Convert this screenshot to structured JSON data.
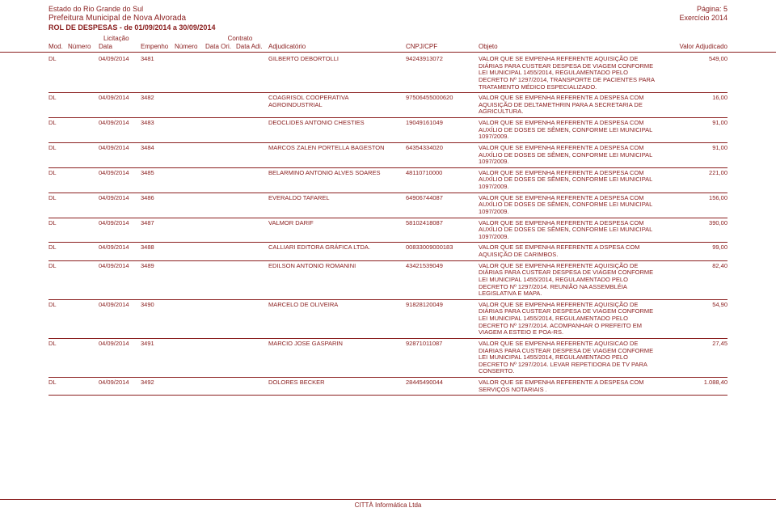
{
  "color": "#8b2020",
  "background_color": "#ffffff",
  "header": {
    "estado": "Estado do Rio Grande do Sul",
    "prefeitura": "Prefeitura Municipal de Nova Alvorada",
    "rol": "ROL DE DESPESAS - de 01/09/2014 a 30/09/2014",
    "pagina": "Página: 5",
    "exercicio": "Exercício 2014"
  },
  "sublabels": {
    "licitacao": "Licitação",
    "contrato": "Contrato"
  },
  "columns": {
    "mod": "Mod.",
    "numero1": "Número",
    "data1": "Data",
    "empenho": "Empenho",
    "numero2": "Número",
    "dataori": "Data Ori.",
    "dataadi": "Data Adi.",
    "adj": "Adjudicatório",
    "cnpj": "CNPJ/CPF",
    "objeto": "Objeto",
    "valor": "Valor Adjudicado"
  },
  "rows": [
    {
      "mod": "DL",
      "data": "04/09/2014",
      "empenho": "3481",
      "adj": "GILBERTO DEBORTOLLI",
      "cnpj": "94243913072",
      "obj": "VALOR QUE SE EMPENHA REFERENTE AQUISIÇÃO DE DIÁRIAS PARA CUSTEAR DESPESA DE VIAGEM CONFORME LEI MUNICIPAL 1455/2014, REGULAMENTADO PELO DECRETO Nº 1297/2014, TRANSPORTE DE PACIENTES PARA TRATAMENTO MÉDICO ESPECIALIZADO.",
      "val": "549,00"
    },
    {
      "mod": "DL",
      "data": "04/09/2014",
      "empenho": "3482",
      "adj": "COAGRISOL COOPERATIVA AGROINDUSTRIAL",
      "cnpj": "97506455000620",
      "obj": "VALOR QUE SE EMPENHA REFERENTE A DESPESA COM AQUISIÇÃO DE DELTAMETHRIN PARA A SECRETARIA DE AGRICULTURA.",
      "val": "16,00"
    },
    {
      "mod": "DL",
      "data": "04/09/2014",
      "empenho": "3483",
      "adj": "DEOCLIDES ANTONIO CHESTIES",
      "cnpj": "19049161049",
      "obj": "VALOR QUE SE EMPENHA REFERENTE A DESPESA COM AUXÍLIO DE DOSES DE SÊMEN, CONFORME LEI MUNICIPAL 1097/2009.",
      "val": "91,00"
    },
    {
      "mod": "DL",
      "data": "04/09/2014",
      "empenho": "3484",
      "adj": "MARCOS ZALEN PORTELLA BAGESTON",
      "cnpj": "64354334020",
      "obj": "VALOR QUE SE EMPENHA REFERENTE A DESPESA COM AUXÍLIO DE DOSES DE SÊMEN, CONFORME LEI MUNICIPAL 1097/2009.",
      "val": "91,00"
    },
    {
      "mod": "DL",
      "data": "04/09/2014",
      "empenho": "3485",
      "adj": "BELARMINO ANTONIO ALVES SOARES",
      "cnpj": "48110710000",
      "obj": "VALOR QUE SE EMPENHA REFERENTE A DESPESA COM AUXÍLIO DE DOSES DE SÊMEN, CONFORME LEI MUNICIPAL 1097/2009.",
      "val": "221,00"
    },
    {
      "mod": "DL",
      "data": "04/09/2014",
      "empenho": "3486",
      "adj": "EVERALDO TAFAREL",
      "cnpj": "64906744087",
      "obj": "VALOR QUE SE EMPENHA REFERENTE A DESPESA COM AUXÍLIO DE DOSES DE SÊMEN, CONFORME LEI MUNICIPAL 1097/2009.",
      "val": "156,00"
    },
    {
      "mod": "DL",
      "data": "04/09/2014",
      "empenho": "3487",
      "adj": "VALMOR DARIF",
      "cnpj": "58102418087",
      "obj": "VALOR QUE SE EMPENHA REFERENTE A DESPESA COM AUXÍLIO DE DOSES DE SÊMEN, CONFORME LEI MUNICIPAL 1097/2009.",
      "val": "390,00"
    },
    {
      "mod": "DL",
      "data": "04/09/2014",
      "empenho": "3488",
      "adj": "CALLIARI EDITORA GRÁFICA LTDA.",
      "cnpj": "00833009000183",
      "obj": "VALOR QUE SE EMPENHA REFERENTE A DSPESA COM AQUISIÇÃO DE CARIMBOS.",
      "val": "99,00"
    },
    {
      "mod": "DL",
      "data": "04/09/2014",
      "empenho": "3489",
      "adj": "EDILSON ANTONIO ROMANINI",
      "cnpj": "43421539049",
      "obj": "VALOR QUE SE EMPENHA REFERENTE AQUISIÇÃO DE DIÁRIAS PARA CUSTEAR DESPESA DE VIAGEM CONFORME LEI MUNICIPAL 1455/2014, REGULAMENTADO PELO DECRETO Nº 1297/2014. REUNIÃO NA ASSEMBLÉIA LEGISLATIVA E MAPA.",
      "val": "82,40"
    },
    {
      "mod": "DL",
      "data": "04/09/2014",
      "empenho": "3490",
      "adj": "MARCELO DE OLIVEIRA",
      "cnpj": "91828120049",
      "obj": "VALOR QUE SE EMPENHA REFERENTE AQUISIÇÃO DE DIÁRIAS PARA CUSTEAR DESPESA DE VIAGEM CONFORME LEI MUNICIPAL 1455/2014, REGULAMENTADO PELO DECRETO Nº 1297/2014. ACOMPANHAR O PREFEITO EM VIAGEM A ESTEIO E POA-RS.",
      "val": "54,90"
    },
    {
      "mod": "DL",
      "data": "04/09/2014",
      "empenho": "3491",
      "adj": "MARCIO JOSE GASPARIN",
      "cnpj": "92871011087",
      "obj": "VALOR QUE SE EMPENHA REFERENTE AQUISICAO DE DIARIAS PARA CUSTEAR DESPESA DE VIAGEM CONFORME LEI MUNICIPAL 1455/2014, REGULAMENTADO PELO DECRETO Nº 1297/2014. LEVAR REPETIDORA DE TV PARA CONSERTO.",
      "val": "27,45"
    },
    {
      "mod": "DL",
      "data": "04/09/2014",
      "empenho": "3492",
      "adj": "DOLORES BECKER",
      "cnpj": "28445490044",
      "obj": "VALOR QUE SE EMPENHA REFERENTE A DESPESA COM SERVIÇOS NOTARIAIS .",
      "val": "1.088,40"
    }
  ],
  "footer": "CITTÀ Informática Ltda"
}
